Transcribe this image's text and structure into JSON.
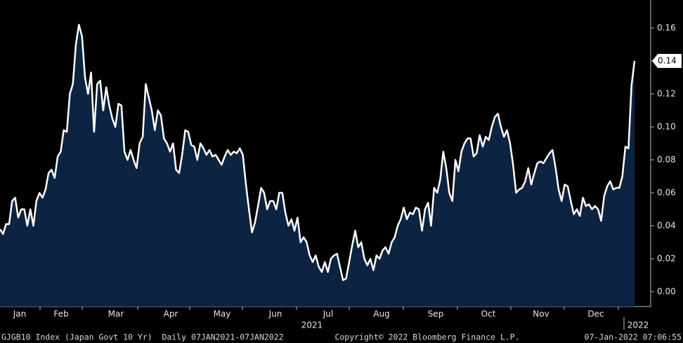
{
  "chart_data": {
    "type": "area",
    "series": [
      {
        "name": "GJGB10 Index",
        "color": "#ffffff",
        "fill": "#0c2341",
        "values": [
          0.038,
          0.035,
          0.041,
          0.041,
          0.055,
          0.057,
          0.045,
          0.05,
          0.05,
          0.04,
          0.05,
          0.04,
          0.055,
          0.06,
          0.057,
          0.062,
          0.072,
          0.074,
          0.069,
          0.082,
          0.085,
          0.098,
          0.097,
          0.12,
          0.126,
          0.15,
          0.162,
          0.155,
          0.13,
          0.12,
          0.133,
          0.097,
          0.126,
          0.128,
          0.11,
          0.124,
          0.113,
          0.105,
          0.1,
          0.114,
          0.113,
          0.085,
          0.08,
          0.086,
          0.08,
          0.075,
          0.09,
          0.094,
          0.126,
          0.118,
          0.11,
          0.098,
          0.11,
          0.107,
          0.093,
          0.09,
          0.085,
          0.09,
          0.074,
          0.072,
          0.083,
          0.098,
          0.097,
          0.089,
          0.088,
          0.08,
          0.09,
          0.087,
          0.083,
          0.086,
          0.082,
          0.083,
          0.08,
          0.077,
          0.082,
          0.086,
          0.083,
          0.085,
          0.084,
          0.087,
          0.083,
          0.065,
          0.05,
          0.036,
          0.042,
          0.052,
          0.063,
          0.06,
          0.05,
          0.055,
          0.055,
          0.05,
          0.06,
          0.06,
          0.048,
          0.04,
          0.044,
          0.037,
          0.045,
          0.03,
          0.033,
          0.03,
          0.022,
          0.018,
          0.022,
          0.015,
          0.012,
          0.018,
          0.012,
          0.02,
          0.022,
          0.023,
          0.015,
          0.007,
          0.008,
          0.018,
          0.028,
          0.037,
          0.027,
          0.03,
          0.02,
          0.016,
          0.02,
          0.013,
          0.022,
          0.02,
          0.025,
          0.027,
          0.023,
          0.03,
          0.033,
          0.04,
          0.044,
          0.051,
          0.044,
          0.048,
          0.047,
          0.051,
          0.05,
          0.037,
          0.05,
          0.054,
          0.04,
          0.063,
          0.06,
          0.068,
          0.085,
          0.075,
          0.06,
          0.055,
          0.08,
          0.073,
          0.085,
          0.09,
          0.093,
          0.093,
          0.082,
          0.084,
          0.095,
          0.088,
          0.094,
          0.092,
          0.1,
          0.106,
          0.108,
          0.1,
          0.094,
          0.098,
          0.09,
          0.077,
          0.06,
          0.062,
          0.063,
          0.067,
          0.075,
          0.065,
          0.072,
          0.078,
          0.079,
          0.078,
          0.081,
          0.084,
          0.086,
          0.075,
          0.062,
          0.055,
          0.065,
          0.064,
          0.055,
          0.047,
          0.05,
          0.046,
          0.057,
          0.052,
          0.053,
          0.05,
          0.052,
          0.05,
          0.043,
          0.058,
          0.064,
          0.067,
          0.062,
          0.063,
          0.063,
          0.07,
          0.088,
          0.087,
          0.125,
          0.14
        ]
      }
    ],
    "last_value": 0.14,
    "months": [
      "Jan",
      "Feb",
      "Mar",
      "Apr",
      "May",
      "Jun",
      "Jul",
      "Aug",
      "Sep",
      "Oct",
      "Nov",
      "Dec"
    ],
    "years": [
      "2021",
      "2022"
    ],
    "ylim": [
      -0.009,
      0.177
    ],
    "yticks": [
      {
        "value": 0,
        "label": "0.00"
      },
      0.02,
      0.04,
      0.06,
      0.08,
      {
        "value": 0.1,
        "label": "0.10"
      },
      0.12,
      0.14,
      0.16
    ],
    "footer": {
      "left": "GJGB10 Index (Japan Govt 10 Yr)  Daily 07JAN2021-07JAN2022",
      "center": "Copyright© 2022 Bloomberg Finance L.P.",
      "right": "07-Jan-2022 07:06:55"
    }
  }
}
